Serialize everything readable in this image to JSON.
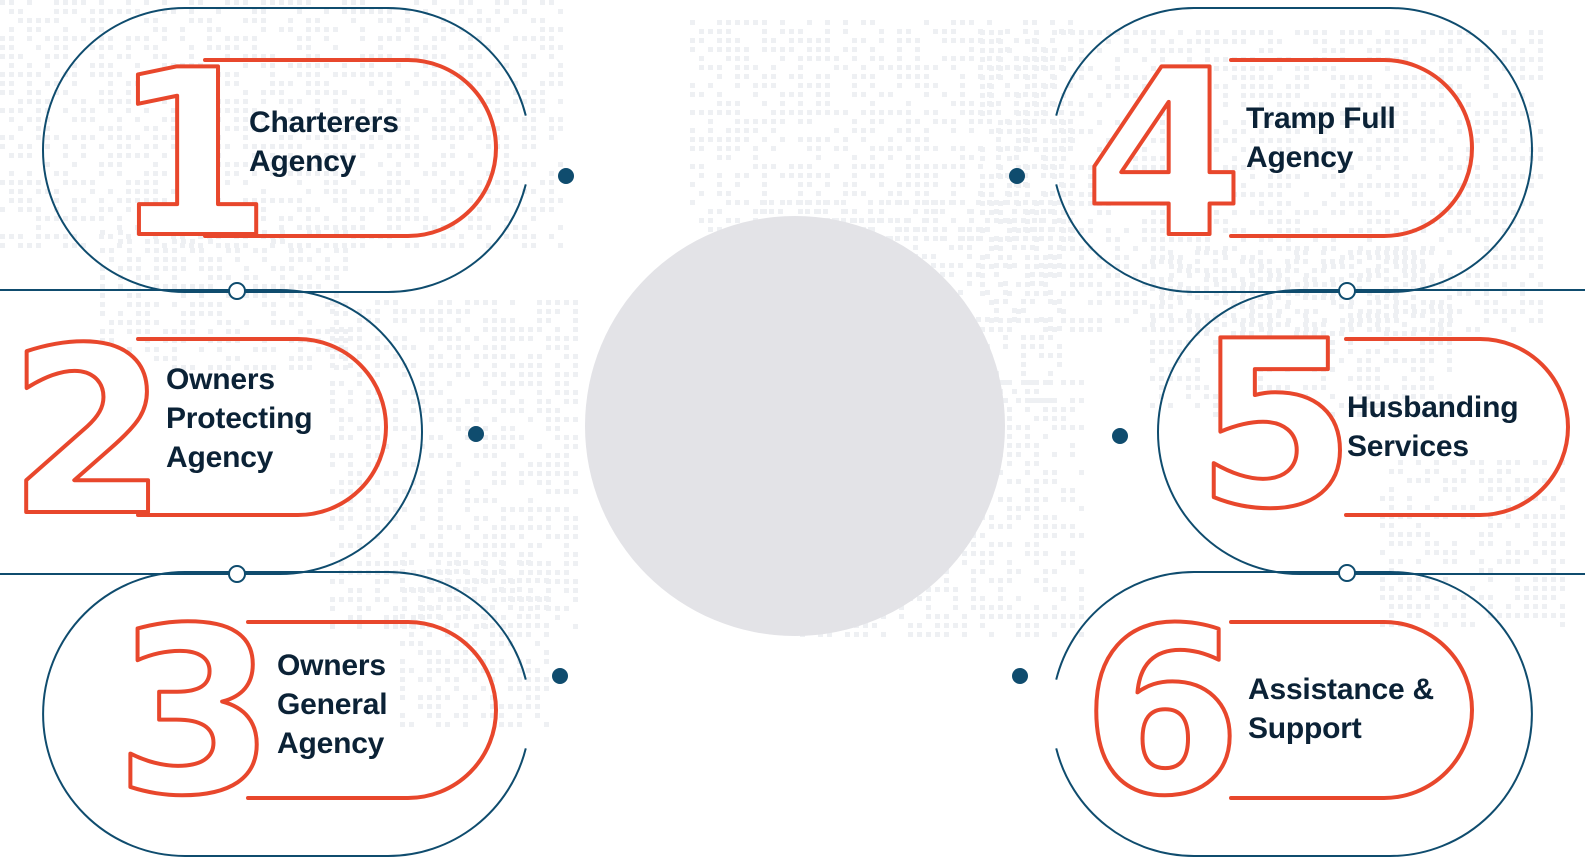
{
  "colors": {
    "navy": "#0f4c6e",
    "red": "#e8472c",
    "center": "#e3e3e7",
    "dots": "#eef0f3",
    "text": "#0b2236"
  },
  "items": [
    {
      "number": "1",
      "lines": [
        "Charterers",
        "Agency"
      ]
    },
    {
      "number": "2",
      "lines": [
        "Owners",
        "Protecting",
        "Agency"
      ]
    },
    {
      "number": "3",
      "lines": [
        "Owners",
        "General",
        "Agency"
      ]
    },
    {
      "number": "4",
      "lines": [
        "Tramp Full",
        "Agency"
      ]
    },
    {
      "number": "5",
      "lines": [
        "Husbanding",
        "Services"
      ]
    },
    {
      "number": "6",
      "lines": [
        "Assistance &",
        "Support"
      ]
    }
  ]
}
